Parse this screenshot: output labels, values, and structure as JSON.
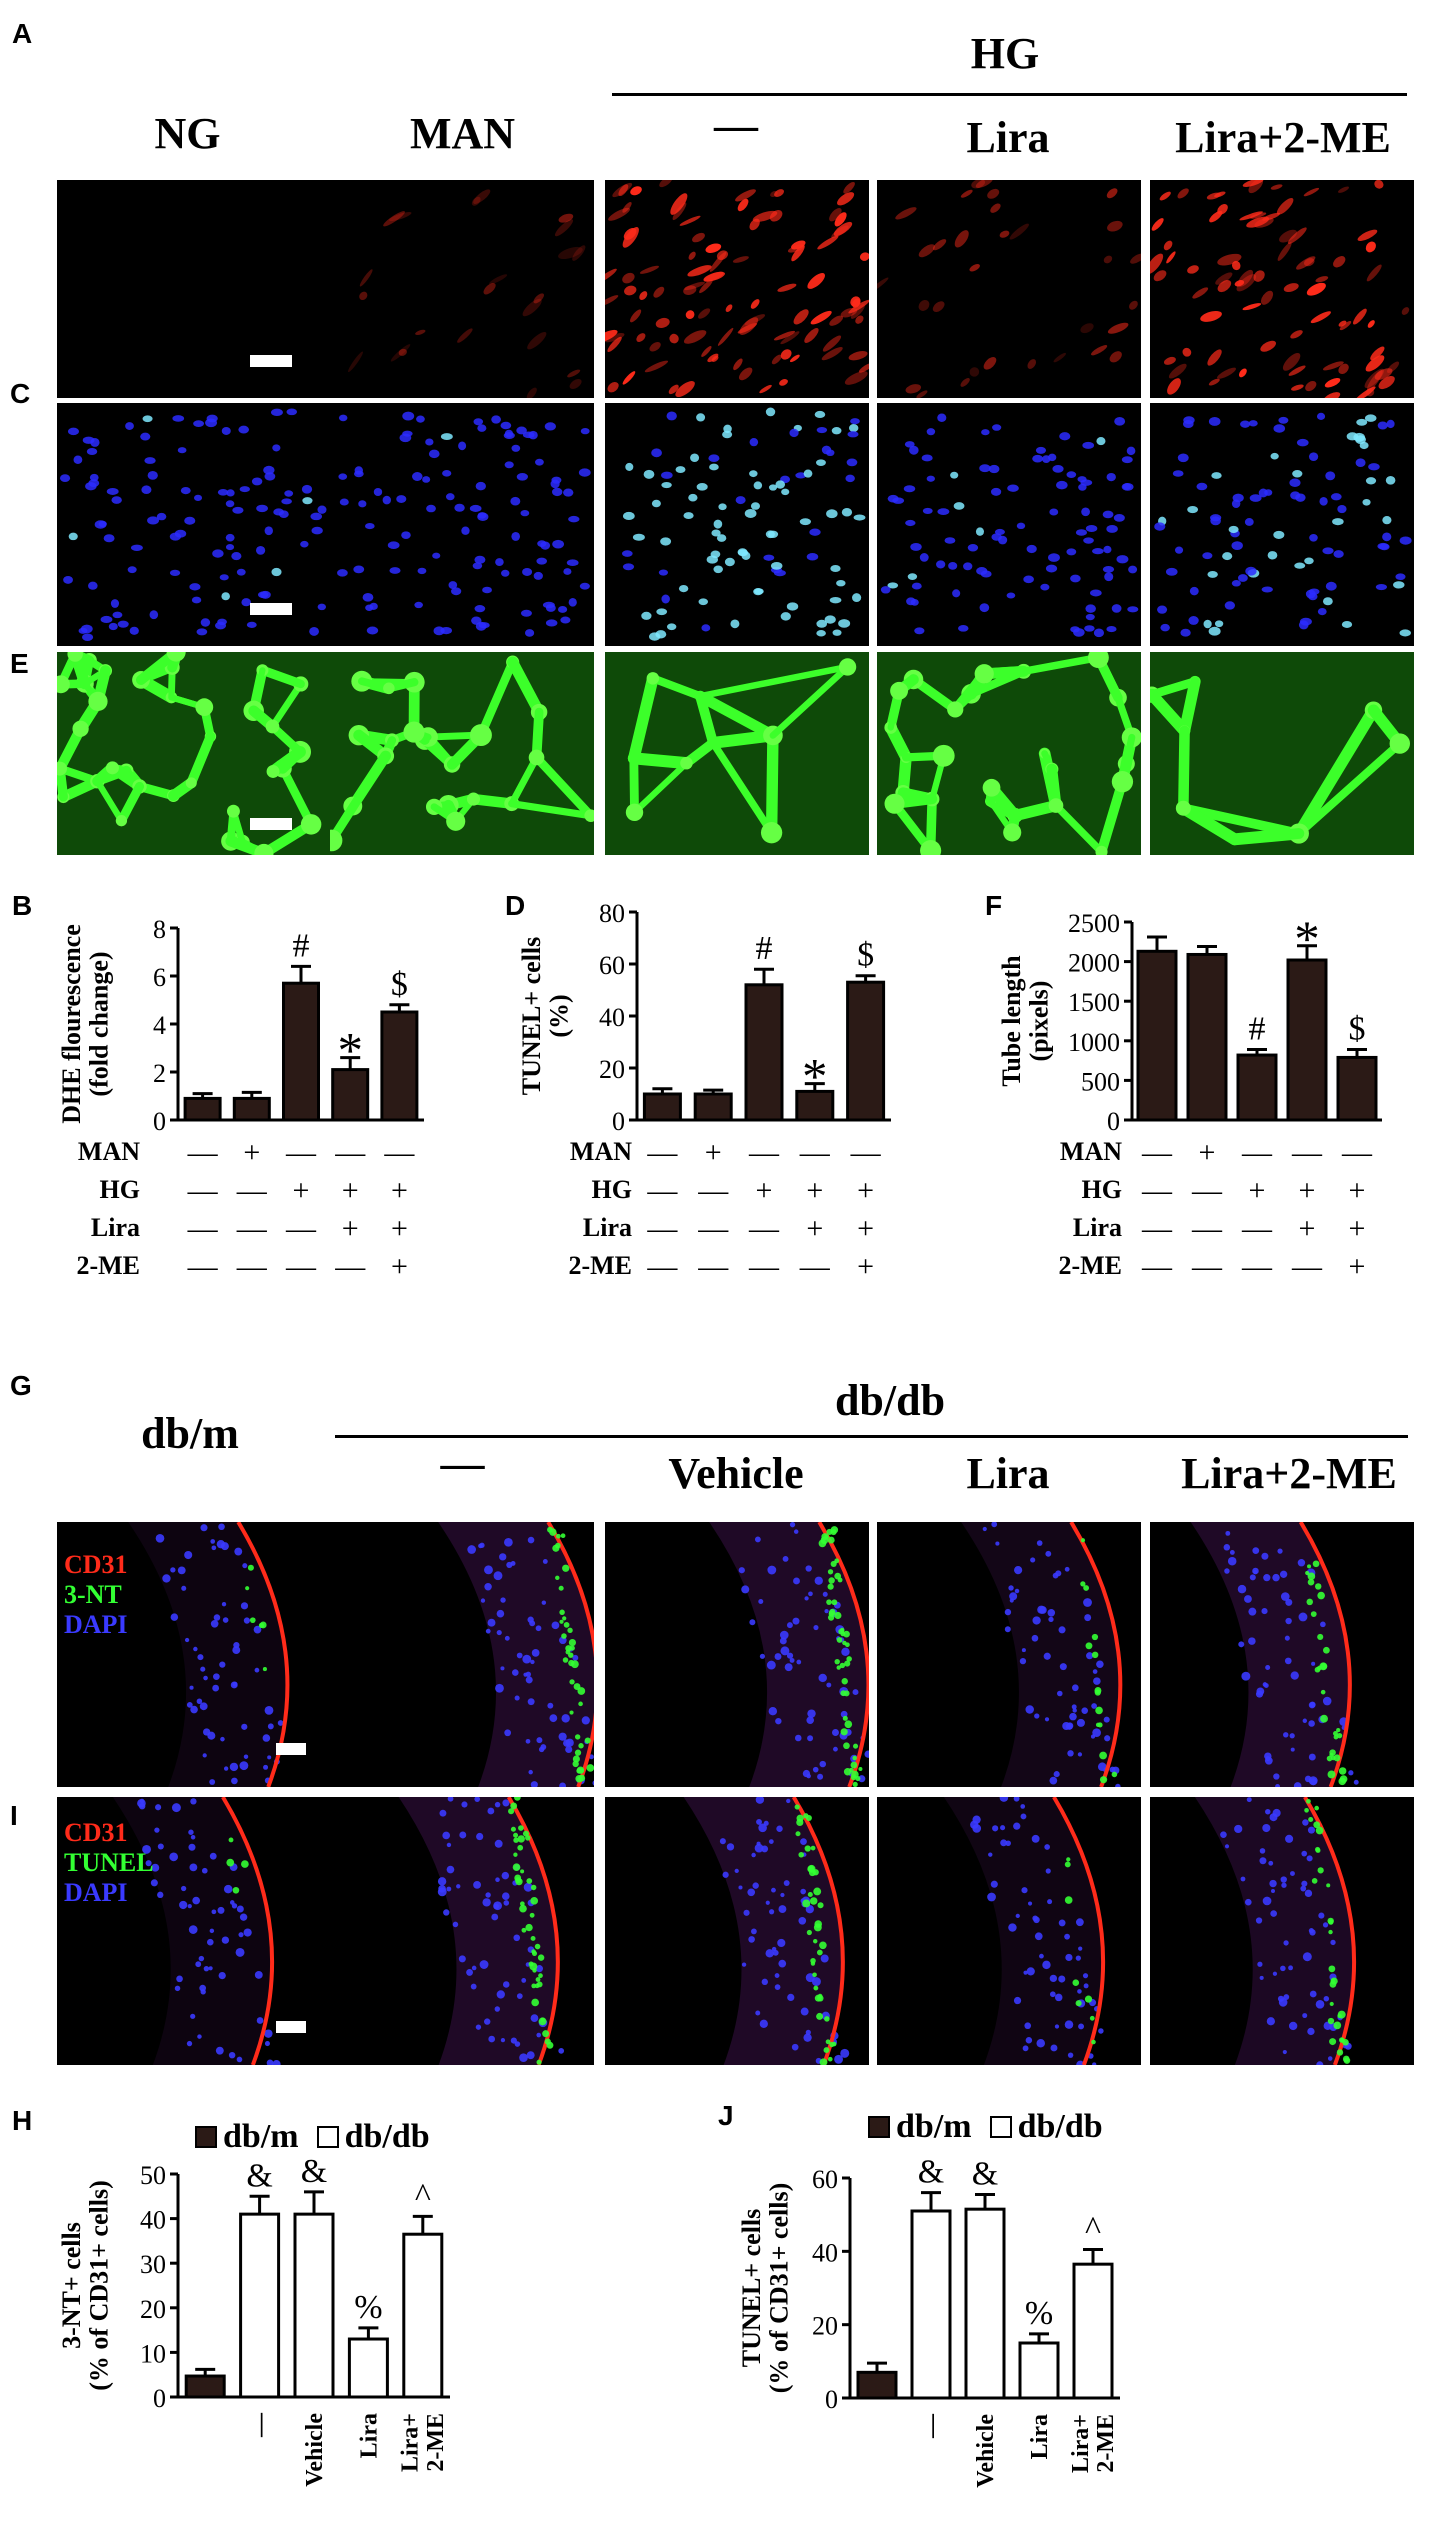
{
  "panels_top": {
    "letters": [
      "A",
      "C",
      "E"
    ],
    "hg_header": "HG",
    "columns": [
      "NG",
      "MAN",
      "—",
      "Lira",
      "Lira+2-ME"
    ]
  },
  "panels_vivo": {
    "letters": [
      "G",
      "I"
    ],
    "dbm_header": "db/m",
    "dbdb_header": "db/db",
    "columns": [
      "—",
      "Vehicle",
      "Lira",
      "Lira+2-ME"
    ],
    "stain_g": [
      "CD31",
      "3-NT",
      "DAPI"
    ],
    "stain_i": [
      "CD31",
      "TUNEL",
      "DAPI"
    ]
  },
  "treatment_table": {
    "rows": [
      "MAN",
      "HG",
      "Lira",
      "2-ME"
    ],
    "signs": [
      [
        "—",
        "+",
        "—",
        "—",
        "—"
      ],
      [
        "—",
        "—",
        "+",
        "+",
        "+"
      ],
      [
        "—",
        "—",
        "—",
        "+",
        "+"
      ],
      [
        "—",
        "—",
        "—",
        "—",
        "+"
      ]
    ]
  },
  "legend": {
    "dbm": "db/m",
    "dbdb": "db/db"
  },
  "colors": {
    "bar_dark": "#2b1a16",
    "red_stain": "#ff2b1a",
    "green_stain": "#33ff33",
    "blue_stain": "#3a3aff"
  },
  "chart_data": [
    {
      "panel": "B",
      "type": "bar",
      "categories": [
        "1",
        "2",
        "3",
        "4",
        "5"
      ],
      "values": [
        0.9,
        0.9,
        5.7,
        2.1,
        4.5
      ],
      "errors": [
        0.2,
        0.25,
        0.7,
        0.5,
        0.3
      ],
      "annotations": [
        "",
        "",
        "#",
        "*",
        "$"
      ],
      "ylabel_lines": [
        "DHE flourescence",
        "(fold change)"
      ],
      "yticks": [
        "0",
        "2",
        "4",
        "6",
        "8"
      ],
      "ylim": [
        0,
        8
      ],
      "fill": "dark"
    },
    {
      "panel": "D",
      "type": "bar",
      "categories": [
        "1",
        "2",
        "3",
        "4",
        "5"
      ],
      "values": [
        10,
        10,
        52,
        11,
        53
      ],
      "errors": [
        2,
        1.5,
        6,
        3,
        2.5
      ],
      "annotations": [
        "",
        "",
        "#",
        "*",
        "$"
      ],
      "ylabel_lines": [
        "TUNEL+ cells",
        "(%)"
      ],
      "yticks": [
        "0",
        "20",
        "40",
        "60",
        "80"
      ],
      "ylim": [
        0,
        80
      ],
      "fill": "dark"
    },
    {
      "panel": "F",
      "type": "bar",
      "categories": [
        "1",
        "2",
        "3",
        "4",
        "5"
      ],
      "values": [
        2130,
        2090,
        820,
        2020,
        790
      ],
      "errors": [
        180,
        100,
        70,
        180,
        100
      ],
      "annotations": [
        "",
        "",
        "#",
        "*",
        "$"
      ],
      "ylabel_lines": [
        "Tube length",
        "(pixels)"
      ],
      "yticks": [
        "0",
        "500",
        "1000",
        "1500",
        "2000",
        "2500"
      ],
      "ylim": [
        0,
        2500
      ],
      "fill": "dark"
    },
    {
      "panel": "H",
      "type": "bar",
      "categories": [
        "",
        "—",
        "Vehicle",
        "Lira",
        "Lira+|2-ME"
      ],
      "values": [
        4.7,
        41,
        41,
        13,
        36.5
      ],
      "errors": [
        1.5,
        4,
        5,
        2.5,
        4
      ],
      "annotations": [
        "",
        "&",
        "&",
        "%",
        "^"
      ],
      "fills": [
        "dark",
        "white",
        "white",
        "white",
        "white"
      ],
      "ylabel_lines": [
        "3-NT+ cells",
        "(% of CD31+ cells)"
      ],
      "yticks": [
        "0",
        "10",
        "20",
        "30",
        "40",
        "50"
      ],
      "ylim": [
        0,
        50
      ]
    },
    {
      "panel": "J",
      "type": "bar",
      "categories": [
        "",
        "—",
        "Vehicle",
        "Lira",
        "Lira+|2-ME"
      ],
      "values": [
        7,
        51,
        51.5,
        15,
        36.5
      ],
      "errors": [
        2.5,
        5,
        4,
        2.5,
        4
      ],
      "annotations": [
        "",
        "&",
        "&",
        "%",
        "^"
      ],
      "fills": [
        "dark",
        "white",
        "white",
        "white",
        "white"
      ],
      "ylabel_lines": [
        "TUNEL+ cells",
        "(% of CD31+ cells)"
      ],
      "yticks": [
        "0",
        "20",
        "40",
        "60"
      ],
      "ylim": [
        0,
        60
      ]
    }
  ]
}
